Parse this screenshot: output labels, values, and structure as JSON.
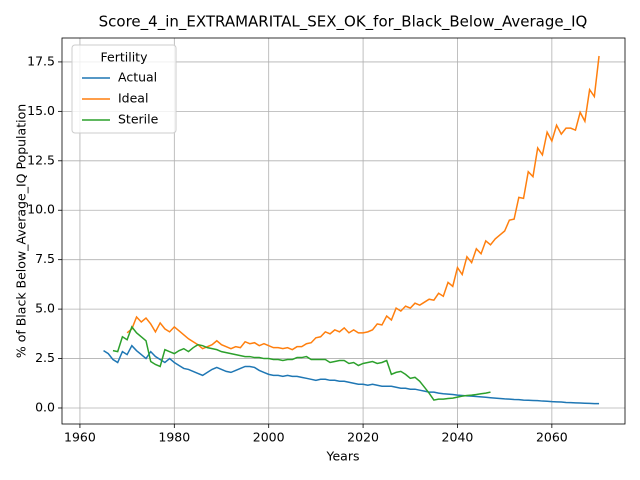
{
  "chart_data": {
    "type": "line",
    "title": "Score_4_in_EXTRAMARITAL_SEX_OK_for_Black_Below_Average_IQ",
    "x_label": "Years",
    "y_label": "% of Black Below_Average_IQ Population",
    "legend_title": "Fertility",
    "legend": "upper left",
    "grid": true,
    "xlim": [
      1956.2,
      2075.5
    ],
    "ylim": [
      -0.81,
      18.71
    ],
    "xticks": [
      1960,
      1980,
      2000,
      2020,
      2040,
      2060
    ],
    "yticks": [
      {
        "value": 0,
        "label": "0.0"
      },
      {
        "value": 2.5,
        "label": "2.5"
      },
      {
        "value": 5,
        "label": "5.0"
      },
      {
        "value": 7.5,
        "label": "7.5"
      },
      {
        "value": 10,
        "label": "10.0"
      },
      {
        "value": 12.5,
        "label": "12.5"
      },
      {
        "value": 15,
        "label": "15.0"
      },
      {
        "value": 17.5,
        "label": "17.5"
      }
    ],
    "x": [
      1965,
      1966,
      1967,
      1968,
      1969,
      1970,
      1971,
      1972,
      1973,
      1974,
      1975,
      1976,
      1977,
      1978,
      1979,
      1980,
      1981,
      1982,
      1983,
      1984,
      1985,
      1986,
      1987,
      1988,
      1989,
      1990,
      1991,
      1992,
      1993,
      1994,
      1995,
      1996,
      1997,
      1998,
      1999,
      2000,
      2001,
      2002,
      2003,
      2004,
      2005,
      2006,
      2007,
      2008,
      2009,
      2010,
      2011,
      2012,
      2013,
      2014,
      2015,
      2016,
      2017,
      2018,
      2019,
      2020,
      2021,
      2022,
      2023,
      2024,
      2025,
      2026,
      2027,
      2028,
      2029,
      2030,
      2031,
      2032,
      2033,
      2034,
      2035,
      2036,
      2037,
      2038,
      2039,
      2040,
      2041,
      2042,
      2043,
      2044,
      2045,
      2046,
      2047,
      2048,
      2049,
      2050,
      2051,
      2052,
      2053,
      2054,
      2055,
      2056,
      2057,
      2058,
      2059,
      2060,
      2061,
      2062,
      2063,
      2064,
      2065,
      2066,
      2067,
      2068,
      2069,
      2070
    ],
    "series": [
      {
        "name": "Actual",
        "color": "#1f77b4",
        "values": [
          2.9,
          2.75,
          2.45,
          2.3,
          2.85,
          2.7,
          3.15,
          2.9,
          2.7,
          2.5,
          2.85,
          2.6,
          2.45,
          2.3,
          2.5,
          2.3,
          2.15,
          2.0,
          1.95,
          1.85,
          1.75,
          1.65,
          1.8,
          1.95,
          2.05,
          1.95,
          1.85,
          1.8,
          1.9,
          2.0,
          2.1,
          2.1,
          2.05,
          1.9,
          1.8,
          1.7,
          1.65,
          1.65,
          1.6,
          1.65,
          1.6,
          1.6,
          1.55,
          1.5,
          1.45,
          1.4,
          1.45,
          1.45,
          1.4,
          1.4,
          1.35,
          1.35,
          1.3,
          1.25,
          1.2,
          1.2,
          1.15,
          1.2,
          1.15,
          1.1,
          1.1,
          1.1,
          1.05,
          1.0,
          1.0,
          0.95,
          0.95,
          0.9,
          0.85,
          0.8,
          0.8,
          0.75,
          0.72,
          0.7,
          0.68,
          0.65,
          0.63,
          0.61,
          0.6,
          0.58,
          0.56,
          0.54,
          0.52,
          0.5,
          0.48,
          0.46,
          0.45,
          0.43,
          0.42,
          0.4,
          0.39,
          0.38,
          0.37,
          0.35,
          0.34,
          0.32,
          0.31,
          0.3,
          0.28,
          0.27,
          0.26,
          0.25,
          0.24,
          0.23,
          0.22,
          0.22
        ]
      },
      {
        "name": "Ideal",
        "color": "#ff7f0e",
        "values": [
          null,
          null,
          null,
          null,
          null,
          3.8,
          4.0,
          4.6,
          4.35,
          4.55,
          4.25,
          3.85,
          4.3,
          4.0,
          3.85,
          4.1,
          3.9,
          3.7,
          3.5,
          3.35,
          3.2,
          3.0,
          3.1,
          3.2,
          3.4,
          3.2,
          3.1,
          3.0,
          3.1,
          3.05,
          3.35,
          3.25,
          3.3,
          3.15,
          3.25,
          3.15,
          3.05,
          3.05,
          3.0,
          3.05,
          2.95,
          3.1,
          3.1,
          3.25,
          3.3,
          3.55,
          3.6,
          3.85,
          3.75,
          3.95,
          3.85,
          4.05,
          3.8,
          3.95,
          3.8,
          3.8,
          3.85,
          3.95,
          4.25,
          4.2,
          4.65,
          4.45,
          5.05,
          4.9,
          5.15,
          5.05,
          5.3,
          5.2,
          5.35,
          5.5,
          5.45,
          5.8,
          5.65,
          6.35,
          6.15,
          7.1,
          6.75,
          7.65,
          7.35,
          8.05,
          7.8,
          8.45,
          8.25,
          8.55,
          8.75,
          8.95,
          9.5,
          9.55,
          10.65,
          10.6,
          11.95,
          11.7,
          13.15,
          12.8,
          13.95,
          13.5,
          14.3,
          13.85,
          14.15,
          14.15,
          14.05,
          14.95,
          14.5,
          16.1,
          15.75,
          17.8
        ]
      },
      {
        "name": "Sterile",
        "color": "#2ca02c",
        "values": [
          null,
          null,
          2.9,
          2.85,
          3.6,
          3.45,
          4.1,
          3.8,
          3.6,
          3.4,
          2.35,
          2.2,
          2.1,
          2.95,
          2.85,
          2.75,
          2.9,
          3.0,
          2.85,
          3.05,
          3.2,
          3.15,
          3.05,
          3.0,
          2.95,
          2.85,
          2.8,
          2.75,
          2.7,
          2.65,
          2.6,
          2.6,
          2.55,
          2.55,
          2.5,
          2.5,
          2.45,
          2.45,
          2.4,
          2.45,
          2.45,
          2.55,
          2.55,
          2.6,
          2.45,
          2.45,
          2.45,
          2.45,
          2.3,
          2.35,
          2.4,
          2.4,
          2.25,
          2.3,
          2.15,
          2.25,
          2.3,
          2.35,
          2.25,
          2.3,
          2.4,
          1.7,
          1.8,
          1.85,
          1.7,
          1.5,
          1.55,
          1.35,
          1.05,
          0.75,
          0.4,
          0.45,
          0.45,
          0.48,
          0.5,
          0.55,
          0.6,
          0.63,
          0.65,
          0.68,
          0.72,
          0.75,
          0.8,
          null,
          null,
          null,
          null,
          null,
          null,
          null,
          null,
          null,
          null,
          null,
          null,
          null,
          null,
          null,
          null,
          null,
          null,
          null,
          null,
          null,
          null,
          null
        ]
      }
    ]
  }
}
